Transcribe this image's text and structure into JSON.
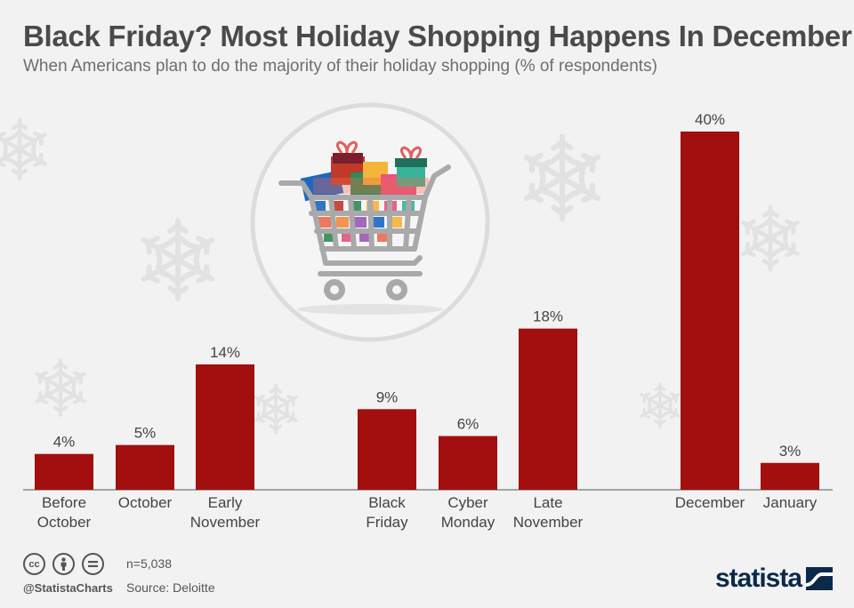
{
  "title": "Black Friday? Most Holiday Shopping Happens In December",
  "subtitle": "When Americans plan to do the majority of their holiday shopping (% of respondents)",
  "chart_data": {
    "type": "bar",
    "categories": [
      [
        "Before",
        "October"
      ],
      [
        "October"
      ],
      [
        "Early",
        "November"
      ],
      [
        "Black",
        "Friday"
      ],
      [
        "Cyber",
        "Monday"
      ],
      [
        "Late",
        "November"
      ],
      [
        "December"
      ],
      [
        "January"
      ]
    ],
    "values": [
      4,
      5,
      14,
      9,
      6,
      18,
      40,
      3
    ],
    "value_labels": [
      "4%",
      "5%",
      "14%",
      "9%",
      "6%",
      "18%",
      "40%",
      "3%"
    ],
    "ylim": [
      0,
      40
    ],
    "grid": false,
    "bar_color": "#a30e0e",
    "illustration_icon": "shopping-cart-with-gifts-icon",
    "decoration_icon": "snowflake-icon"
  },
  "footer": {
    "cc_icons": [
      "cc",
      "by",
      "="
    ],
    "handle": "@StatistaCharts",
    "n": "n=5,038",
    "source": "Source: Deloitte",
    "brand": "statista"
  },
  "colors": {
    "background": "#f2f2f2",
    "bar": "#a30e0e",
    "brand": "#0b2a4a"
  }
}
